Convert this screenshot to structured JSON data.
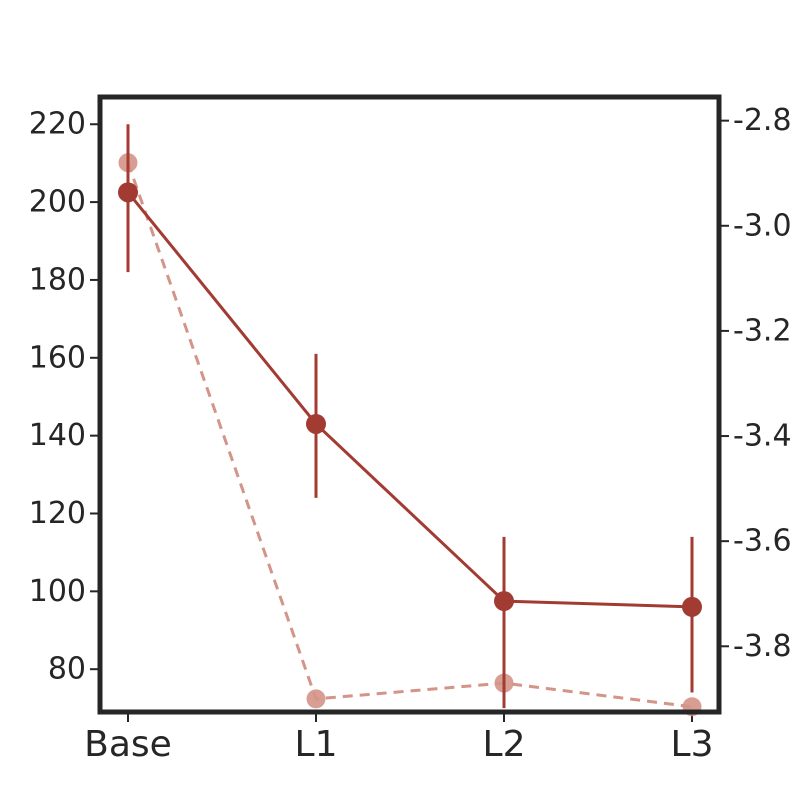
{
  "chart_data": {
    "type": "line",
    "categories": [
      "Base",
      "L1",
      "L2",
      "L3"
    ],
    "title": "",
    "xlabel": "",
    "ylabel": "",
    "ylabel_right": "",
    "ylim": [
      69,
      227
    ],
    "ylim_right": [
      -3.925,
      -2.755
    ],
    "yticks": [
      220,
      200,
      180,
      160,
      140,
      120,
      100,
      80
    ],
    "yticks_right": [
      -2.8,
      -3.0,
      -3.2,
      -3.4,
      -3.6,
      -3.8
    ],
    "ytick_labels_right": [
      "-2.8",
      "-3.0",
      "-3.2",
      "-3.4",
      "-3.6",
      "-3.8"
    ],
    "grid": false,
    "legend": "none",
    "series": [
      {
        "axis": "left",
        "style": "solid",
        "color": "#a23b32",
        "values": [
          202.5,
          143,
          97.5,
          96
        ],
        "error_low": [
          182,
          124,
          70,
          74
        ],
        "error_high": [
          220,
          161,
          114,
          114
        ]
      },
      {
        "axis": "right",
        "style": "dashed",
        "color": "#d49488",
        "values": [
          -2.88,
          -3.9,
          -3.87,
          -3.915
        ]
      }
    ]
  }
}
